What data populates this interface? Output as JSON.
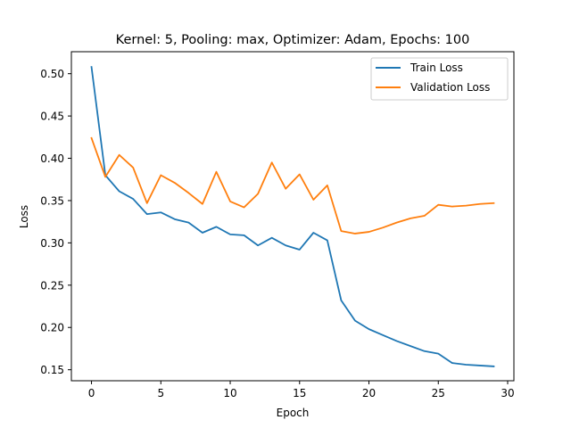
{
  "chart_data": {
    "type": "line",
    "title": "Kernel: 5, Pooling: max, Optimizer: Adam, Epochs: 100",
    "xlabel": "Epoch",
    "ylabel": "Loss",
    "xlim": [
      -1.45,
      30.45
    ],
    "ylim": [
      0.137,
      0.526
    ],
    "xticks": [
      0,
      5,
      10,
      15,
      20,
      25,
      30
    ],
    "yticks": [
      0.15,
      0.2,
      0.25,
      0.3,
      0.35,
      0.4,
      0.45,
      0.5
    ],
    "xtick_labels": [
      "0",
      "5",
      "10",
      "15",
      "20",
      "25",
      "30"
    ],
    "ytick_labels": [
      "0.15",
      "0.20",
      "0.25",
      "0.30",
      "0.35",
      "0.40",
      "0.45",
      "0.50"
    ],
    "grid": false,
    "legend_position": "top-right",
    "x": [
      0,
      1,
      2,
      3,
      4,
      5,
      6,
      7,
      8,
      9,
      10,
      11,
      12,
      13,
      14,
      15,
      16,
      17,
      18,
      19,
      20,
      21,
      22,
      23,
      24,
      25,
      26,
      27,
      28,
      29
    ],
    "series": [
      {
        "name": "Train Loss",
        "color": "#1f77b4",
        "values": [
          0.508,
          0.38,
          0.361,
          0.352,
          0.334,
          0.336,
          0.328,
          0.324,
          0.312,
          0.319,
          0.31,
          0.309,
          0.297,
          0.306,
          0.297,
          0.292,
          0.312,
          0.303,
          0.232,
          0.208,
          0.198,
          0.191,
          0.184,
          0.178,
          0.172,
          0.169,
          0.158,
          0.156,
          0.155,
          0.154
        ]
      },
      {
        "name": "Validation Loss",
        "color": "#ff7f0e",
        "values": [
          0.424,
          0.378,
          0.404,
          0.389,
          0.347,
          0.38,
          0.371,
          0.359,
          0.346,
          0.384,
          0.349,
          0.342,
          0.358,
          0.395,
          0.364,
          0.381,
          0.351,
          0.368,
          0.314,
          0.311,
          0.313,
          0.318,
          0.324,
          0.329,
          0.332,
          0.345,
          0.343,
          0.344,
          0.346,
          0.347
        ]
      }
    ]
  }
}
